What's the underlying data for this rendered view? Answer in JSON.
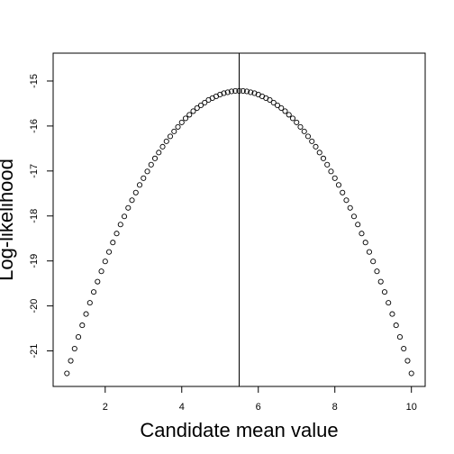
{
  "chart_data": {
    "type": "scatter",
    "title": "",
    "xlabel": "Candidate mean value",
    "ylabel": "Log-likelihood",
    "xlim": [
      0.64,
      10.36
    ],
    "ylim": [
      -21.79,
      -14.38
    ],
    "x_ticks": [
      2,
      4,
      6,
      8,
      10
    ],
    "y_ticks": [
      -21,
      -20,
      -19,
      -18,
      -17,
      -16,
      -15
    ],
    "x_tick_labels": [
      "2",
      "4",
      "6",
      "8",
      "10"
    ],
    "y_tick_labels": [
      "-21",
      "-20",
      "-19",
      "-18",
      "-17",
      "-16",
      "-15"
    ],
    "vline_x": 5.5,
    "grid": false,
    "marker": "open-circle",
    "series": [
      {
        "x": [
          1.0,
          1.1,
          1.2,
          1.3,
          1.4,
          1.5,
          1.6,
          1.7,
          1.8,
          1.9,
          2.0,
          2.1,
          2.2,
          2.3,
          2.4,
          2.5,
          2.6,
          2.7,
          2.8,
          2.9,
          3.0,
          3.1,
          3.2,
          3.3,
          3.4,
          3.5,
          3.6,
          3.7,
          3.8,
          3.9,
          4.0,
          4.1,
          4.2,
          4.3,
          4.4,
          4.5,
          4.6,
          4.7,
          4.8,
          4.9,
          5.0,
          5.1,
          5.2,
          5.3,
          5.4,
          5.5,
          5.6,
          5.7,
          5.8,
          5.9,
          6.0,
          6.1,
          6.2,
          6.3,
          6.4,
          6.5,
          6.6,
          6.7,
          6.8,
          6.9,
          7.0,
          7.1,
          7.2,
          7.3,
          7.4,
          7.5,
          7.6,
          7.7,
          7.8,
          7.9,
          8.0,
          8.1,
          8.2,
          8.3,
          8.4,
          8.5,
          8.6,
          8.7,
          8.8,
          8.9,
          9.0,
          9.1,
          9.2,
          9.3,
          9.4,
          9.5,
          9.6,
          9.7,
          9.8,
          9.9,
          10.0
        ],
        "y": [
          -21.5,
          -21.22,
          -20.95,
          -20.69,
          -20.43,
          -20.18,
          -19.93,
          -19.69,
          -19.46,
          -19.23,
          -19.01,
          -18.8,
          -18.59,
          -18.39,
          -18.19,
          -18.01,
          -17.82,
          -17.65,
          -17.48,
          -17.31,
          -17.16,
          -17.01,
          -16.86,
          -16.72,
          -16.59,
          -16.46,
          -16.34,
          -16.23,
          -16.12,
          -16.02,
          -15.92,
          -15.83,
          -15.75,
          -15.67,
          -15.6,
          -15.54,
          -15.48,
          -15.42,
          -15.38,
          -15.34,
          -15.3,
          -15.27,
          -15.25,
          -15.23,
          -15.22,
          -15.22,
          -15.22,
          -15.23,
          -15.25,
          -15.27,
          -15.3,
          -15.34,
          -15.38,
          -15.42,
          -15.48,
          -15.54,
          -15.6,
          -15.67,
          -15.75,
          -15.83,
          -15.92,
          -16.02,
          -16.12,
          -16.23,
          -16.34,
          -16.46,
          -16.59,
          -16.72,
          -16.86,
          -17.01,
          -17.16,
          -17.31,
          -17.48,
          -17.65,
          -17.82,
          -18.01,
          -18.19,
          -18.39,
          -18.59,
          -18.8,
          -19.01,
          -19.23,
          -19.46,
          -19.69,
          -19.93,
          -20.18,
          -20.43,
          -20.69,
          -20.95,
          -21.22,
          -21.5
        ]
      }
    ]
  }
}
